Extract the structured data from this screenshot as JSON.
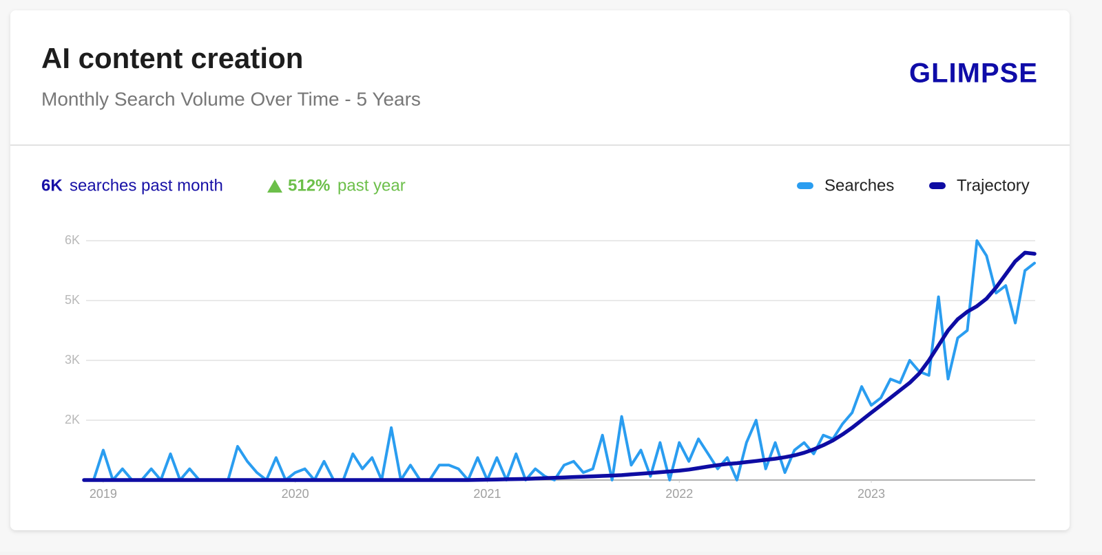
{
  "chart_data": {
    "type": "line",
    "title": "AI content creation",
    "subtitle": "Monthly Search Volume Over Time - 5 Years",
    "brand": "GLIMPSE",
    "summary": {
      "volume": "6K",
      "volume_text": "searches past month",
      "growth": "512%",
      "growth_text": "past year"
    },
    "legend": "top-right",
    "grid": true,
    "xlim": [
      2018.9,
      2023.85
    ],
    "xticks": [
      2019,
      2020,
      2021,
      2022,
      2023
    ],
    "ylim": [
      0,
      6400
    ],
    "yticks": [
      {
        "value": 1600,
        "label": "2K"
      },
      {
        "value": 3200,
        "label": "3K"
      },
      {
        "value": 4800,
        "label": "5K"
      },
      {
        "value": 6400,
        "label": "6K"
      }
    ],
    "x": [
      2018.9,
      2018.95,
      2019,
      2019.05,
      2019.1,
      2019.15,
      2019.2,
      2019.25,
      2019.3,
      2019.35,
      2019.4,
      2019.45,
      2019.5,
      2019.55,
      2019.6,
      2019.65,
      2019.7,
      2019.75,
      2019.8,
      2019.85,
      2019.9,
      2019.95,
      2020,
      2020.05,
      2020.1,
      2020.15,
      2020.2,
      2020.25,
      2020.3,
      2020.35,
      2020.4,
      2020.45,
      2020.5,
      2020.55,
      2020.6,
      2020.65,
      2020.7,
      2020.75,
      2020.8,
      2020.85,
      2020.9,
      2020.95,
      2021,
      2021.05,
      2021.1,
      2021.15,
      2021.2,
      2021.25,
      2021.3,
      2021.35,
      2021.4,
      2021.45,
      2021.5,
      2021.55,
      2021.6,
      2021.65,
      2021.7,
      2021.75,
      2021.8,
      2021.85,
      2021.9,
      2021.95,
      2022,
      2022.05,
      2022.1,
      2022.15,
      2022.2,
      2022.25,
      2022.3,
      2022.35,
      2022.4,
      2022.45,
      2022.5,
      2022.55,
      2022.6,
      2022.65,
      2022.7,
      2022.75,
      2022.8,
      2022.85,
      2022.9,
      2022.95,
      2023,
      2023.05,
      2023.1,
      2023.15,
      2023.2,
      2023.25,
      2023.3,
      2023.35,
      2023.4,
      2023.45,
      2023.5,
      2023.55,
      2023.6,
      2023.65,
      2023.7,
      2023.75,
      2023.8,
      2023.85
    ],
    "series": [
      {
        "name": "Searches",
        "color": "#2a9df0",
        "values": [
          0,
          0,
          800,
          0,
          300,
          0,
          0,
          300,
          0,
          700,
          0,
          300,
          0,
          0,
          0,
          0,
          900,
          500,
          200,
          0,
          600,
          0,
          200,
          300,
          0,
          500,
          0,
          0,
          700,
          300,
          600,
          0,
          1400,
          0,
          400,
          0,
          0,
          400,
          400,
          300,
          0,
          600,
          0,
          600,
          0,
          700,
          0,
          300,
          100,
          0,
          400,
          500,
          200,
          300,
          1200,
          0,
          1700,
          400,
          800,
          100,
          1000,
          0,
          1000,
          500,
          1100,
          700,
          300,
          600,
          0,
          1000,
          1600,
          300,
          1000,
          200,
          800,
          1000,
          700,
          1200,
          1100,
          1500,
          1800,
          2500,
          2000,
          2200,
          2700,
          2600,
          3200,
          2900,
          2800,
          4900,
          2700,
          3800,
          4000,
          6400,
          6000,
          5000,
          5200,
          4200,
          5600,
          5800
        ]
      },
      {
        "name": "Trajectory",
        "color": "#0e0ca3",
        "values": [
          0,
          0,
          0,
          0,
          0,
          0,
          0,
          0,
          0,
          0,
          0,
          0,
          0,
          0,
          0,
          0,
          0,
          0,
          0,
          0,
          0,
          0,
          0,
          0,
          0,
          0,
          0,
          0,
          0,
          0,
          0,
          0,
          0,
          0,
          0,
          0,
          0,
          0,
          0,
          0,
          0,
          5,
          10,
          15,
          20,
          25,
          30,
          40,
          50,
          60,
          70,
          80,
          90,
          100,
          110,
          120,
          130,
          150,
          170,
          190,
          210,
          230,
          250,
          280,
          320,
          360,
          400,
          430,
          450,
          480,
          510,
          540,
          570,
          610,
          660,
          730,
          820,
          930,
          1060,
          1220,
          1400,
          1600,
          1800,
          2000,
          2200,
          2400,
          2600,
          2850,
          3200,
          3600,
          4000,
          4300,
          4500,
          4650,
          4850,
          5150,
          5500,
          5850,
          6080,
          6050
        ]
      }
    ]
  }
}
